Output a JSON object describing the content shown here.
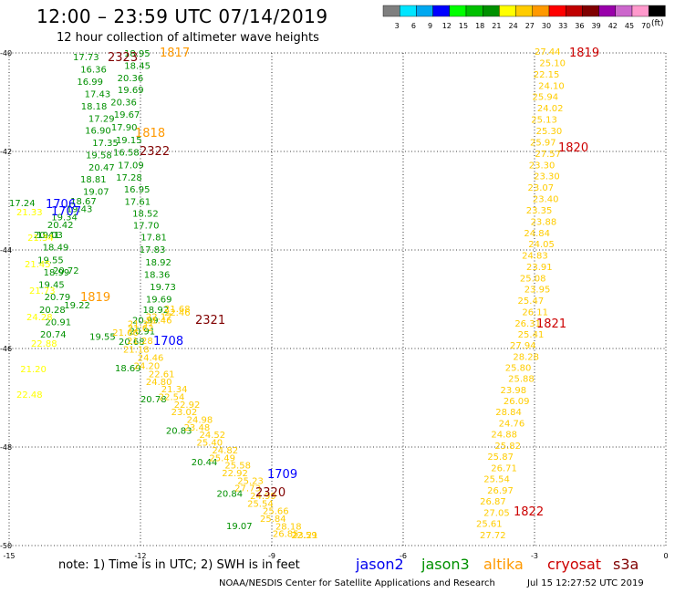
{
  "header": {
    "title": "12:00 – 23:59 UTC 07/14/2019",
    "subtitle": "12 hour collection of altimeter wave heights"
  },
  "legend": {
    "bins": [
      {
        "label": "3",
        "color": "#7f7f7f"
      },
      {
        "label": "6",
        "color": "#00e5ff"
      },
      {
        "label": "9",
        "color": "#00a8f0"
      },
      {
        "label": "12",
        "color": "#0000ff"
      },
      {
        "label": "15",
        "color": "#00ff00"
      },
      {
        "label": "18",
        "color": "#00c000"
      },
      {
        "label": "21",
        "color": "#009000"
      },
      {
        "label": "24",
        "color": "#ffff00"
      },
      {
        "label": "27",
        "color": "#ffcc00"
      },
      {
        "label": "30",
        "color": "#ff9900"
      },
      {
        "label": "33",
        "color": "#ff0000"
      },
      {
        "label": "36",
        "color": "#c00000"
      },
      {
        "label": "39",
        "color": "#800000"
      },
      {
        "label": "42",
        "color": "#9900aa"
      },
      {
        "label": "45",
        "color": "#cc66cc"
      },
      {
        "label": "70",
        "color": "#ff99cc"
      },
      {
        "label": "",
        "color": "#000000"
      }
    ],
    "units": "(ft)"
  },
  "axes": {
    "lat_labels": [
      "-40",
      "-42",
      "-44",
      "-46",
      "-48",
      "-50"
    ],
    "lon_labels": [
      "-15",
      "-12",
      "-9",
      "-6",
      "-3",
      "0"
    ]
  },
  "passes": [
    {
      "label": "1817",
      "color": "#ff9900"
    },
    {
      "label": "2323",
      "color": "#800000"
    },
    {
      "label": "1818",
      "color": "#ff9900"
    },
    {
      "label": "2322",
      "color": "#800000"
    },
    {
      "label": "1706",
      "color": "#0000ff"
    },
    {
      "label": "1707",
      "color": "#0000ff"
    },
    {
      "label": "1819",
      "color": "#ff9900"
    },
    {
      "label": "2321",
      "color": "#800000"
    },
    {
      "label": "1708",
      "color": "#0000ff"
    },
    {
      "label": "1709",
      "color": "#0000ff"
    },
    {
      "label": "2320",
      "color": "#800000"
    },
    {
      "label": "1819",
      "color": "#cc0000"
    },
    {
      "label": "1820",
      "color": "#cc0000"
    },
    {
      "label": "1821",
      "color": "#cc0000"
    },
    {
      "label": "1822",
      "color": "#cc0000"
    }
  ],
  "tracks": {
    "jason3_a": {
      "color": "#009000",
      "values": [
        "17.73",
        "16.36",
        "16.99",
        "17.43",
        "18.18",
        "17.29",
        "16.90",
        "17.35",
        "19.58",
        "20.47",
        "18.81",
        "19.07",
        "18.67",
        "19.43",
        "19.34",
        "20.42",
        "19.03",
        "18.49",
        "19.55",
        "18.99",
        "19.45",
        "20.79",
        "20.28",
        "20.91",
        "20.74"
      ]
    },
    "jason3_b": {
      "color": "#009000",
      "values": [
        "18.95",
        "18.45",
        "20.36",
        "19.69",
        "20.36",
        "19.67",
        "17.90",
        "19.15",
        "16.58",
        "17.09",
        "17.28",
        "16.95",
        "17.61",
        "18.52",
        "17.70",
        "17.81",
        "17.83",
        "18.92",
        "18.36",
        "19.73",
        "19.69",
        "18.92",
        "20.99",
        "20.91",
        "20.68"
      ]
    },
    "jason3_c": {
      "color": "#009000",
      "values": [
        "17.24",
        "20.41",
        "20.72",
        "19.22",
        "19.55",
        "18.69",
        "20.78",
        "20.83",
        "20.44",
        "20.84",
        "19.07"
      ]
    },
    "altika_a": {
      "color": "#ffff00",
      "values": [
        "21.33",
        "21.34",
        "21.45",
        "21.73",
        "24.28",
        "22.88",
        "21.20",
        "22.48"
      ]
    },
    "altika_b": {
      "color": "#ffcc00",
      "values": [
        "21.68",
        "22.46",
        "22.17",
        "21.46",
        "21.37",
        "21.62",
        "21.66",
        "21.28",
        "21.18",
        "24.46",
        "24.20",
        "22.61",
        "24.80",
        "21.34",
        "22.54",
        "22.92",
        "23.02",
        "24.98",
        "23.48",
        "24.52",
        "25.40",
        "24.82",
        "25.49",
        "25.58",
        "22.92",
        "25.23",
        "27.73",
        "24.99",
        "25.54",
        "25.66",
        "25.84",
        "28.18",
        "26.85",
        "22.59",
        "23.21"
      ]
    },
    "cryosat": {
      "color": "#ffcc00",
      "values": [
        "27.44",
        "25.10",
        "22.15",
        "24.10",
        "25.94",
        "24.02",
        "25.13",
        "25.30",
        "25.97",
        "27.57",
        "23.30",
        "23.30",
        "23.07",
        "23.40",
        "23.35",
        "23.88",
        "24.84",
        "24.05",
        "24.83",
        "23.91",
        "25.08",
        "23.95",
        "25.47",
        "26.11",
        "26.31",
        "25.41",
        "27.94",
        "28.28",
        "25.80",
        "25.88",
        "23.98",
        "26.09",
        "28.84",
        "24.76",
        "24.88",
        "25.82",
        "25.87",
        "26.71",
        "25.54",
        "26.97",
        "26.87",
        "27.05",
        "25.61",
        "27.72"
      ]
    }
  },
  "note": "note:  1) Time is in UTC; 2) SWH is in feet",
  "satellites": [
    {
      "name": "jason2",
      "color": "#0000ee"
    },
    {
      "name": "jason3",
      "color": "#009000"
    },
    {
      "name": "altika",
      "color": "#ff9900"
    },
    {
      "name": "cryosat",
      "color": "#cc0000"
    },
    {
      "name": "s3a",
      "color": "#800000"
    }
  ],
  "footer": {
    "credit": "NOAA/NESDIS Center for Satellite Applications and Research",
    "timestamp": "Jul 15 12:27:52 UTC 2019"
  }
}
